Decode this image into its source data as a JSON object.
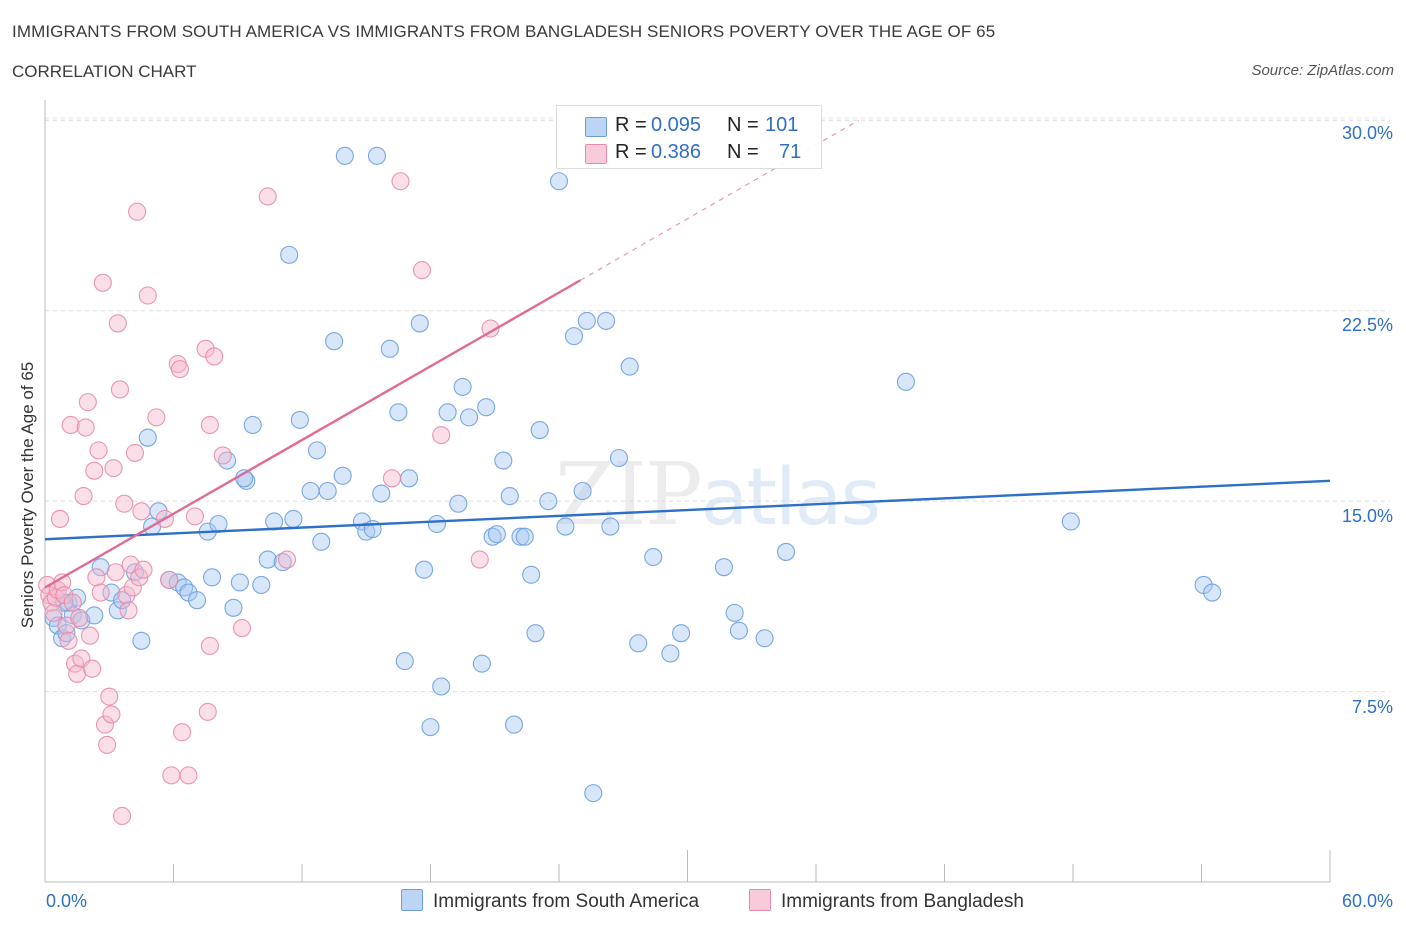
{
  "header": {
    "title": "IMMIGRANTS FROM SOUTH AMERICA VS IMMIGRANTS FROM BANGLADESH SENIORS POVERTY OVER THE AGE OF 65",
    "subtitle": "CORRELATION CHART",
    "source": "Source: ZipAtlas.com"
  },
  "watermark": {
    "zip": "ZIP",
    "atlas": "atlas"
  },
  "legend_top": [
    {
      "r_label": "R =",
      "r_value": "0.095",
      "n_label": "N =",
      "n_value": "101",
      "color": "#a9c8f2"
    },
    {
      "r_label": "R =",
      "r_value": "0.386",
      "n_label": "N =",
      "n_value": "71",
      "color": "#f5b8cb"
    }
  ],
  "legend_bottom": [
    {
      "label": "Immigrants from South America",
      "color": "#a9c8f2"
    },
    {
      "label": "Immigrants from Bangladesh",
      "color": "#f5b8cb"
    }
  ],
  "chart_data": {
    "type": "scatter",
    "title": "IMMIGRANTS FROM SOUTH AMERICA VS IMMIGRANTS FROM BANGLADESH SENIORS POVERTY OVER THE AGE OF 65",
    "subtitle": "CORRELATION CHART",
    "xlabel": "",
    "ylabel": "Seniors Poverty Over the Age of 65",
    "xlim": [
      0,
      60
    ],
    "ylim": [
      0,
      30.8
    ],
    "x_ticks": [
      "0.0%",
      "60.0%"
    ],
    "y_ticks": [
      {
        "value": 7.5,
        "label": "7.5%"
      },
      {
        "value": 15.0,
        "label": "15.0%"
      },
      {
        "value": 22.5,
        "label": "22.5%"
      },
      {
        "value": 30.0,
        "label": "30.0%"
      }
    ],
    "grid": "horizontal dashed",
    "series": [
      {
        "name": "Immigrants from South America",
        "color": "#6a9ee0",
        "fill": "#a9c8f2",
        "trend": {
          "x": [
            0,
            60
          ],
          "y": [
            13.5,
            15.8
          ],
          "style": "solid",
          "color": "#2e6fc7"
        },
        "points": [
          [
            0.4,
            10.4
          ],
          [
            0.6,
            10.1
          ],
          [
            0.8,
            9.6
          ],
          [
            1.0,
            9.8
          ],
          [
            1.1,
            11.0
          ],
          [
            1.3,
            10.5
          ],
          [
            1.5,
            11.2
          ],
          [
            1.7,
            10.3
          ],
          [
            2.3,
            10.5
          ],
          [
            2.6,
            12.4
          ],
          [
            3.1,
            11.4
          ],
          [
            3.4,
            10.7
          ],
          [
            3.6,
            11.1
          ],
          [
            4.2,
            12.2
          ],
          [
            4.5,
            9.5
          ],
          [
            4.8,
            17.5
          ],
          [
            5.0,
            14.0
          ],
          [
            5.3,
            14.6
          ],
          [
            5.8,
            11.9
          ],
          [
            6.2,
            11.8
          ],
          [
            6.5,
            11.6
          ],
          [
            6.7,
            11.4
          ],
          [
            7.1,
            11.1
          ],
          [
            7.6,
            13.8
          ],
          [
            7.8,
            12.0
          ],
          [
            8.1,
            14.1
          ],
          [
            8.5,
            16.6
          ],
          [
            8.8,
            10.8
          ],
          [
            9.1,
            11.8
          ],
          [
            9.4,
            15.8
          ],
          [
            9.7,
            18.0
          ],
          [
            10.1,
            11.7
          ],
          [
            10.4,
            12.7
          ],
          [
            10.7,
            14.2
          ],
          [
            11.1,
            12.6
          ],
          [
            11.4,
            24.7
          ],
          [
            11.6,
            14.3
          ],
          [
            11.9,
            18.2
          ],
          [
            12.4,
            15.4
          ],
          [
            12.7,
            17.0
          ],
          [
            12.9,
            13.4
          ],
          [
            13.2,
            15.4
          ],
          [
            13.5,
            21.3
          ],
          [
            13.9,
            16.0
          ],
          [
            14.0,
            28.6
          ],
          [
            14.8,
            14.2
          ],
          [
            15.0,
            13.8
          ],
          [
            15.3,
            13.9
          ],
          [
            15.5,
            28.6
          ],
          [
            15.7,
            15.3
          ],
          [
            16.1,
            21.0
          ],
          [
            16.5,
            18.5
          ],
          [
            16.8,
            8.7
          ],
          [
            17.0,
            15.9
          ],
          [
            17.5,
            22.0
          ],
          [
            17.7,
            12.3
          ],
          [
            18.0,
            6.1
          ],
          [
            18.3,
            14.1
          ],
          [
            18.5,
            7.7
          ],
          [
            18.8,
            18.5
          ],
          [
            19.3,
            14.9
          ],
          [
            19.5,
            19.5
          ],
          [
            19.8,
            18.3
          ],
          [
            20.4,
            8.6
          ],
          [
            20.6,
            18.7
          ],
          [
            20.9,
            13.6
          ],
          [
            21.1,
            13.7
          ],
          [
            21.4,
            16.6
          ],
          [
            21.7,
            15.2
          ],
          [
            21.9,
            6.2
          ],
          [
            22.2,
            13.6
          ],
          [
            22.4,
            13.6
          ],
          [
            22.7,
            12.1
          ],
          [
            22.9,
            9.8
          ],
          [
            23.1,
            17.8
          ],
          [
            23.5,
            15.0
          ],
          [
            24.0,
            27.6
          ],
          [
            24.3,
            14.0
          ],
          [
            24.7,
            21.5
          ],
          [
            25.1,
            15.4
          ],
          [
            25.3,
            22.1
          ],
          [
            25.6,
            3.5
          ],
          [
            26.2,
            22.1
          ],
          [
            26.4,
            14.0
          ],
          [
            26.8,
            16.7
          ],
          [
            27.3,
            20.3
          ],
          [
            27.7,
            9.4
          ],
          [
            28.4,
            12.8
          ],
          [
            29.2,
            9.0
          ],
          [
            29.7,
            9.8
          ],
          [
            31.7,
            12.4
          ],
          [
            32.2,
            10.6
          ],
          [
            32.4,
            9.9
          ],
          [
            33.6,
            9.6
          ],
          [
            34.6,
            13.0
          ],
          [
            40.2,
            19.7
          ],
          [
            47.9,
            14.2
          ],
          [
            54.1,
            11.7
          ],
          [
            54.5,
            11.4
          ],
          [
            9.3,
            15.9
          ],
          [
            0.9,
            11.0
          ]
        ]
      },
      {
        "name": "Immigrants from Bangladesh",
        "color": "#e98aa8",
        "fill": "#f5b8cb",
        "trend": {
          "x": [
            0,
            25
          ],
          "y": [
            11.6,
            23.7
          ],
          "extend_to": [
            38,
            30
          ],
          "style": "solid",
          "color": "#e06b95"
        },
        "points": [
          [
            0.1,
            11.7
          ],
          [
            0.2,
            11.3
          ],
          [
            0.3,
            11.0
          ],
          [
            0.4,
            10.6
          ],
          [
            0.5,
            11.2
          ],
          [
            0.6,
            11.5
          ],
          [
            0.7,
            14.3
          ],
          [
            0.8,
            11.8
          ],
          [
            0.9,
            11.3
          ],
          [
            1.0,
            10.1
          ],
          [
            1.1,
            9.5
          ],
          [
            1.2,
            18.0
          ],
          [
            1.3,
            11.0
          ],
          [
            1.4,
            8.6
          ],
          [
            1.5,
            8.2
          ],
          [
            1.6,
            10.4
          ],
          [
            1.7,
            8.8
          ],
          [
            1.8,
            15.2
          ],
          [
            1.9,
            17.9
          ],
          [
            2.0,
            18.9
          ],
          [
            2.1,
            9.7
          ],
          [
            2.2,
            8.4
          ],
          [
            2.3,
            16.2
          ],
          [
            2.4,
            12.0
          ],
          [
            2.5,
            17.0
          ],
          [
            2.6,
            11.4
          ],
          [
            2.7,
            23.6
          ],
          [
            2.8,
            6.2
          ],
          [
            2.9,
            5.4
          ],
          [
            3.0,
            7.3
          ],
          [
            3.1,
            6.6
          ],
          [
            3.2,
            16.3
          ],
          [
            3.3,
            12.2
          ],
          [
            3.4,
            22.0
          ],
          [
            3.5,
            19.4
          ],
          [
            3.6,
            2.6
          ],
          [
            3.7,
            14.9
          ],
          [
            3.8,
            11.3
          ],
          [
            3.9,
            10.7
          ],
          [
            4.0,
            12.5
          ],
          [
            4.1,
            11.6
          ],
          [
            4.2,
            16.9
          ],
          [
            4.3,
            26.4
          ],
          [
            4.4,
            12.0
          ],
          [
            4.5,
            14.6
          ],
          [
            4.6,
            12.3
          ],
          [
            4.8,
            23.1
          ],
          [
            5.2,
            18.3
          ],
          [
            5.6,
            14.3
          ],
          [
            5.8,
            11.9
          ],
          [
            5.9,
            4.2
          ],
          [
            6.2,
            20.4
          ],
          [
            6.3,
            20.2
          ],
          [
            6.4,
            5.9
          ],
          [
            6.7,
            4.2
          ],
          [
            7.0,
            14.4
          ],
          [
            7.5,
            21.0
          ],
          [
            7.6,
            6.7
          ],
          [
            7.7,
            9.3
          ],
          [
            7.7,
            18.0
          ],
          [
            7.9,
            20.7
          ],
          [
            8.3,
            16.8
          ],
          [
            9.2,
            10.0
          ],
          [
            10.4,
            27.0
          ],
          [
            11.3,
            12.7
          ],
          [
            16.2,
            15.9
          ],
          [
            16.6,
            27.6
          ],
          [
            17.6,
            24.1
          ],
          [
            18.5,
            17.6
          ],
          [
            20.3,
            12.7
          ],
          [
            20.8,
            21.8
          ]
        ]
      }
    ]
  }
}
